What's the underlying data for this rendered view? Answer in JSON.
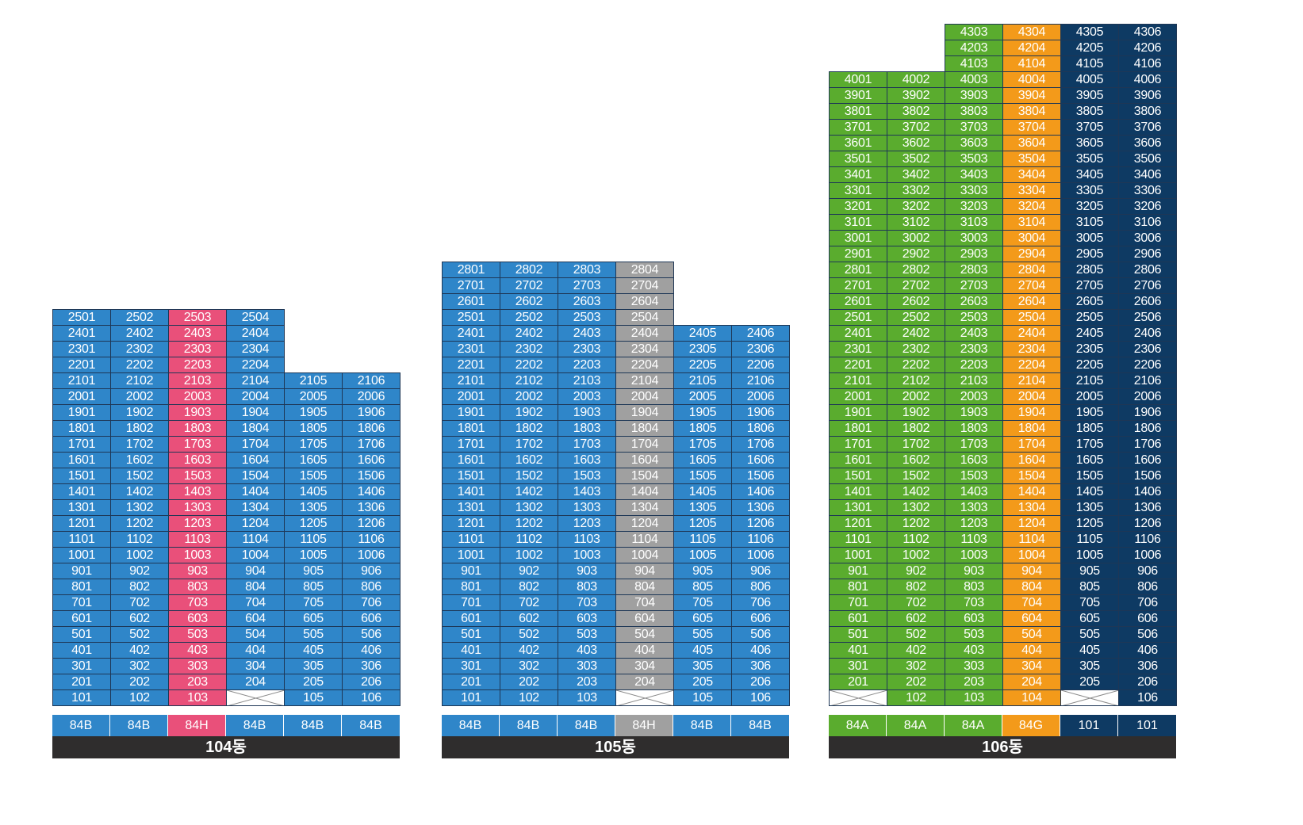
{
  "colors": {
    "blue": "#2f86c9",
    "pink": "#e9507a",
    "gray": "#a0a0a0",
    "green": "#5aac2e",
    "orange": "#f39a1a",
    "navy": "#0e3a63",
    "label_bg": "#2f2d2d"
  },
  "icons": {
    "vacant_unit": "crossed-box-icon"
  },
  "buildings": [
    {
      "name": "104동",
      "columns": [
        {
          "line": "01",
          "type": "84B",
          "color": "blue",
          "top_floor": 25,
          "empty_floors": []
        },
        {
          "line": "02",
          "type": "84B",
          "color": "blue",
          "top_floor": 25,
          "empty_floors": []
        },
        {
          "line": "03",
          "type": "84H",
          "color": "pink",
          "top_floor": 25,
          "empty_floors": []
        },
        {
          "line": "04",
          "type": "84B",
          "color": "blue",
          "top_floor": 25,
          "empty_floors": [
            1
          ]
        },
        {
          "line": "05",
          "type": "84B",
          "color": "blue",
          "top_floor": 21,
          "empty_floors": []
        },
        {
          "line": "06",
          "type": "84B",
          "color": "blue",
          "top_floor": 21,
          "empty_floors": []
        }
      ]
    },
    {
      "name": "105동",
      "columns": [
        {
          "line": "01",
          "type": "84B",
          "color": "blue",
          "top_floor": 28,
          "empty_floors": []
        },
        {
          "line": "02",
          "type": "84B",
          "color": "blue",
          "top_floor": 28,
          "empty_floors": []
        },
        {
          "line": "03",
          "type": "84B",
          "color": "blue",
          "top_floor": 28,
          "empty_floors": []
        },
        {
          "line": "04",
          "type": "84H",
          "color": "gray",
          "top_floor": 28,
          "empty_floors": [
            1
          ]
        },
        {
          "line": "05",
          "type": "84B",
          "color": "blue",
          "top_floor": 24,
          "empty_floors": []
        },
        {
          "line": "06",
          "type": "84B",
          "color": "blue",
          "top_floor": 24,
          "empty_floors": []
        }
      ]
    },
    {
      "name": "106동",
      "columns": [
        {
          "line": "01",
          "type": "84A",
          "color": "green",
          "top_floor": 40,
          "empty_floors": [
            1
          ]
        },
        {
          "line": "02",
          "type": "84A",
          "color": "green",
          "top_floor": 40,
          "empty_floors": []
        },
        {
          "line": "03",
          "type": "84A",
          "color": "green",
          "top_floor": 43,
          "empty_floors": []
        },
        {
          "line": "04",
          "type": "84G",
          "color": "orange",
          "top_floor": 43,
          "empty_floors": []
        },
        {
          "line": "05",
          "type": "101",
          "color": "navy",
          "top_floor": 43,
          "empty_floors": [
            1
          ]
        },
        {
          "line": "06",
          "type": "101",
          "color": "navy",
          "top_floor": 43,
          "empty_floors": []
        }
      ]
    }
  ]
}
